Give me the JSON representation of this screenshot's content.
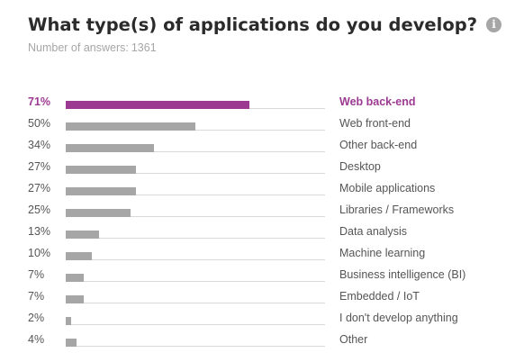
{
  "header": {
    "title": "What type(s) of applications do you develop?",
    "info_icon": "info-icon"
  },
  "subtitle": {
    "label": "Number of answers:",
    "count": "1361"
  },
  "colors": {
    "highlight": "#9c3a92",
    "bar": "#a6a6a6",
    "track": "#d9d9d9"
  },
  "chart_data": {
    "type": "bar",
    "orientation": "horizontal",
    "unit": "%",
    "xlim": [
      0,
      100
    ],
    "grid": false,
    "categories": [
      "Web back-end",
      "Web front-end",
      "Other back-end",
      "Desktop",
      "Mobile applications",
      "Libraries / Frameworks",
      "Data analysis",
      "Machine learning",
      "Business intelligence (BI)",
      "Embedded / IoT",
      "I don't develop anything",
      "Other"
    ],
    "values": [
      71,
      50,
      34,
      27,
      27,
      25,
      13,
      10,
      7,
      7,
      2,
      4
    ],
    "value_labels": [
      "71%",
      "50%",
      "34%",
      "27%",
      "27%",
      "25%",
      "13%",
      "10%",
      "7%",
      "7%",
      "2%",
      "4%"
    ],
    "highlighted_index": 0
  }
}
